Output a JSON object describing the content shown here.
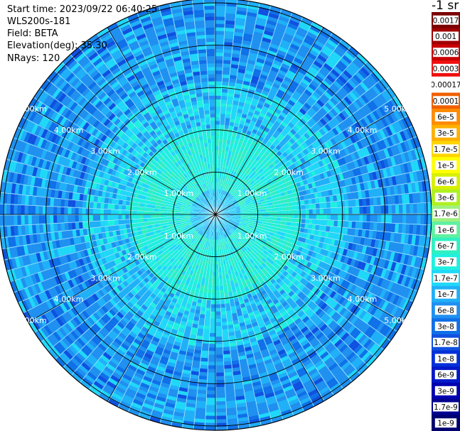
{
  "header": {
    "start_time": "Start time: 2023/09/22 06:40:25",
    "instrument": "WLS200s-181",
    "field": "Field: BETA",
    "elevation": "Elevation(deg): 35.30",
    "nrays": "NRays: 120"
  },
  "units_label": "-1 sr",
  "chart_data": {
    "type": "ppi",
    "field": "BETA",
    "elevation_deg": 35.3,
    "n_rays": 120,
    "range_rings_km": [
      1,
      2,
      3,
      4,
      5
    ],
    "ring_labels": [
      "1.00km",
      "2.00km",
      "3.00km",
      "4.00km",
      "5.00km"
    ],
    "max_range_km": 5.1,
    "colorbar": {
      "labels": [
        "0.0017",
        "0.001",
        "0.0006",
        "0.0003",
        "0.00017",
        "0.0001",
        "6e-5",
        "3e-5",
        "1.7e-5",
        "1e-5",
        "6e-6",
        "3e-6",
        "1.7e-6",
        "1e-6",
        "6e-7",
        "3e-7",
        "1.7e-7",
        "1e-7",
        "6e-8",
        "3e-8",
        "1.7e-8",
        "1e-8",
        "6e-9",
        "3e-9",
        "1.7e-9",
        "1e-9"
      ],
      "colors": [
        "#7a0000",
        "#a00000",
        "#c80000",
        "#f01010",
        "#ffffff",
        "#f06000",
        "#ff8c00",
        "#ffb000",
        "#ffd400",
        "#ffff00",
        "#d8f000",
        "#b0f020",
        "#a0f080",
        "#60f0a0",
        "#30f0c0",
        "#20f0e0",
        "#20d8f8",
        "#20b0f8",
        "#2090f0",
        "#1070e8",
        "#1050e0",
        "#0030d8",
        "#0018c8",
        "#0000b0",
        "#000090",
        "#000070"
      ]
    }
  }
}
